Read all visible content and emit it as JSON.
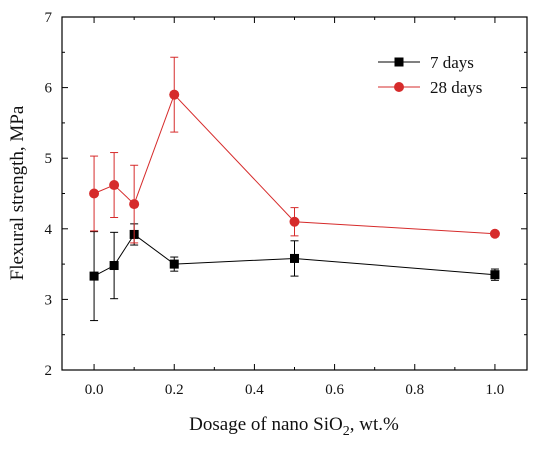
{
  "chart_data": {
    "type": "line",
    "title": "",
    "xlabel": {
      "main": "Dosage of nano SiO",
      "sub": "2",
      "tail": ", wt.%"
    },
    "ylabel": "Flexural strength, MPa",
    "xlim": [
      -0.08,
      1.08
    ],
    "ylim": [
      2,
      7
    ],
    "xticks": [
      0.0,
      0.2,
      0.4,
      0.6,
      0.8,
      1.0
    ],
    "xtick_labels": [
      "0.0",
      "0.2",
      "0.4",
      "0.6",
      "0.8",
      "1.0"
    ],
    "yticks": [
      2,
      3,
      4,
      5,
      6,
      7
    ],
    "ytick_labels": [
      "2",
      "3",
      "4",
      "5",
      "6",
      "7"
    ],
    "legend_position": "top-right",
    "grid": false,
    "series": [
      {
        "name": "7 days",
        "color": "#000000",
        "marker": "square",
        "x": [
          0.0,
          0.05,
          0.1,
          0.2,
          0.5,
          1.0
        ],
        "y": [
          3.33,
          3.48,
          3.92,
          3.5,
          3.58,
          3.35
        ],
        "yerr": [
          0.63,
          0.47,
          0.15,
          0.1,
          0.25,
          0.08
        ]
      },
      {
        "name": "28 days",
        "color": "#d62b2b",
        "marker": "circle",
        "x": [
          0.0,
          0.05,
          0.1,
          0.2,
          0.5,
          1.0
        ],
        "y": [
          4.5,
          4.62,
          4.35,
          5.9,
          4.1,
          3.93
        ],
        "yerr": [
          0.53,
          0.46,
          0.55,
          0.53,
          0.2,
          0.03
        ]
      }
    ]
  }
}
